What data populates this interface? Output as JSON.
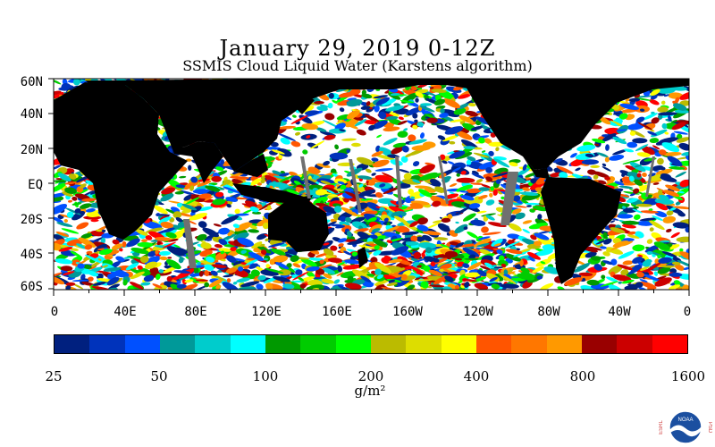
{
  "title": "January 29, 2019 0-12Z",
  "subtitle": "SSMIS Cloud Liquid Water (Karstens algorithm)",
  "map": {
    "lat_labels": [
      "60N",
      "40N",
      "20N",
      "EQ",
      "20S",
      "40S",
      "60S"
    ],
    "lon_labels": [
      "0",
      "40E",
      "80E",
      "120E",
      "160E",
      "160W",
      "120W",
      "80W",
      "40W",
      "0"
    ],
    "land_color": "#000000",
    "no_data_color": "#ffffff",
    "missing_swath_color": "#707070"
  },
  "colorbar": {
    "colors": [
      "#00207f",
      "#0033bb",
      "#0050ff",
      "#009999",
      "#00cccc",
      "#00ffff",
      "#009900",
      "#00cc00",
      "#00ff00",
      "#bbbb00",
      "#dddd00",
      "#ffff00",
      "#ff5500",
      "#ff7700",
      "#ff9900",
      "#990000",
      "#cc0000",
      "#ff0000"
    ],
    "tick_labels": [
      "25",
      "50",
      "100",
      "200",
      "400",
      "800",
      "1600"
    ],
    "unit": "g/m²"
  },
  "logo": {
    "left_text": "ESRL",
    "right_text": "PSD",
    "center_text": "NOAA"
  }
}
